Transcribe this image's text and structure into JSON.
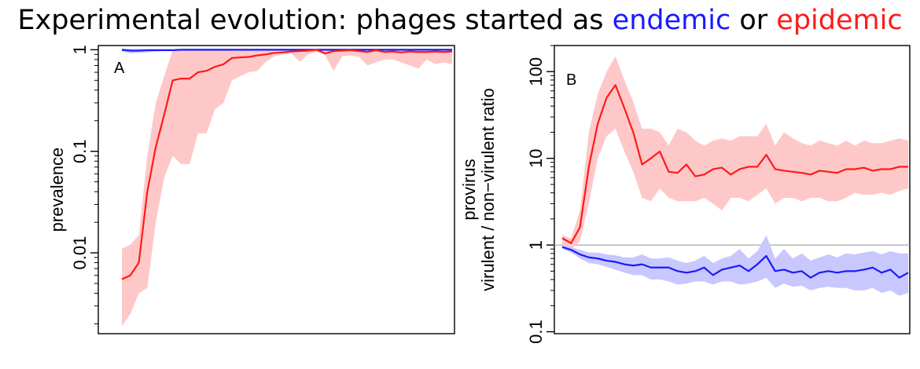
{
  "title": {
    "prefix": "Experimental evolution: phages started as",
    "endemic": "endemic",
    "middle": "or",
    "epidemic": "epidemic"
  },
  "colors": {
    "endemic": "#1a1aff",
    "epidemic": "#ff1a1a",
    "endemic_band": "#c8c8ff",
    "epidemic_band": "#ffc8c8"
  },
  "chart_data": [
    {
      "type": "line",
      "panel_label": "A",
      "title": "",
      "xlabel": "",
      "ylabel": "prevalence",
      "yscale": "log",
      "ylim": [
        0.0016,
        1.1
      ],
      "xlim": [
        1,
        40
      ],
      "yticks": [
        0.01,
        0.1,
        1
      ],
      "ytick_labels": [
        "0.01",
        "0.1",
        "1"
      ],
      "x": [
        1,
        2,
        3,
        4,
        5,
        6,
        7,
        8,
        9,
        10,
        11,
        12,
        13,
        14,
        15,
        16,
        17,
        18,
        19,
        20,
        21,
        22,
        23,
        24,
        25,
        26,
        27,
        28,
        29,
        30,
        31,
        32,
        33,
        34,
        35,
        36,
        37,
        38,
        39,
        40
      ],
      "series": [
        {
          "key": "endemic",
          "values": [
            1,
            0.98,
            0.98,
            0.99,
            0.99,
            0.99,
            0.99,
            1,
            1,
            1,
            1,
            1,
            1,
            1,
            1,
            1,
            1,
            1,
            1,
            1,
            1,
            1,
            1,
            1,
            1,
            1,
            1,
            1,
            1,
            1,
            1,
            1,
            1,
            1,
            1,
            1,
            1,
            1,
            1,
            1
          ],
          "lower": [
            0.96,
            0.92,
            0.93,
            0.94,
            0.96,
            0.97,
            0.97,
            0.98,
            0.98,
            0.98,
            0.98,
            0.98,
            0.98,
            0.98,
            0.98,
            0.98,
            0.98,
            0.98,
            0.98,
            0.98,
            0.98,
            0.98,
            0.98,
            0.98,
            0.98,
            0.98,
            0.98,
            0.98,
            0.98,
            0.98,
            0.98,
            0.98,
            0.98,
            0.98,
            0.98,
            0.98,
            0.98,
            0.98,
            0.98,
            0.98
          ],
          "upper": [
            1.02,
            1.02,
            1.02,
            1.02,
            1.02,
            1.02,
            1.02,
            1.02,
            1.02,
            1.02,
            1.02,
            1.02,
            1.02,
            1.02,
            1.02,
            1.02,
            1.02,
            1.02,
            1.02,
            1.02,
            1.02,
            1.02,
            1.02,
            1.02,
            1.02,
            1.02,
            1.02,
            1.02,
            1.02,
            1.02,
            1.02,
            1.02,
            1.02,
            1.02,
            1.02,
            1.02,
            1.02,
            1.02,
            1.02,
            1.02
          ]
        },
        {
          "key": "epidemic",
          "values": [
            0.0055,
            0.006,
            0.008,
            0.04,
            0.11,
            0.23,
            0.5,
            0.52,
            0.52,
            0.6,
            0.62,
            0.68,
            0.72,
            0.83,
            0.84,
            0.85,
            0.88,
            0.9,
            0.93,
            0.94,
            0.96,
            0.97,
            0.98,
            1,
            0.92,
            0.97,
            0.98,
            0.99,
            0.97,
            0.95,
            0.99,
            0.95,
            0.96,
            0.94,
            0.96,
            0.95,
            0.95,
            0.96,
            0.95,
            0.96
          ],
          "lower": [
            0.0019,
            0.0025,
            0.004,
            0.0045,
            0.02,
            0.055,
            0.09,
            0.075,
            0.075,
            0.15,
            0.15,
            0.26,
            0.3,
            0.5,
            0.55,
            0.6,
            0.62,
            0.76,
            0.86,
            0.9,
            0.92,
            0.76,
            0.9,
            0.96,
            0.88,
            0.62,
            0.86,
            0.88,
            0.85,
            0.7,
            0.75,
            0.8,
            0.8,
            0.75,
            0.7,
            0.65,
            0.8,
            0.72,
            0.75,
            0.72
          ],
          "upper": [
            0.011,
            0.012,
            0.015,
            0.09,
            0.3,
            0.55,
            0.99,
            0.99,
            0.99,
            0.99,
            0.99,
            0.99,
            0.99,
            0.99,
            0.99,
            0.99,
            0.99,
            0.99,
            0.99,
            0.99,
            0.99,
            0.99,
            0.99,
            0.99,
            0.99,
            0.99,
            0.99,
            0.99,
            0.99,
            0.99,
            0.99,
            0.99,
            0.99,
            0.99,
            0.99,
            0.99,
            0.99,
            0.99,
            0.99,
            0.99
          ]
        }
      ]
    },
    {
      "type": "line",
      "panel_label": "B",
      "title": "",
      "xlabel": "",
      "ylabel": "provirus",
      "ylabel_line2": "virulent / non−virulent ratio",
      "yscale": "log",
      "ylim": [
        0.095,
        200
      ],
      "xlim": [
        1,
        40
      ],
      "yticks": [
        0.1,
        1,
        10,
        100
      ],
      "ytick_labels": [
        "0.1",
        "1",
        "10",
        "100"
      ],
      "reference_line": 1,
      "x": [
        1,
        2,
        3,
        4,
        5,
        6,
        7,
        8,
        9,
        10,
        11,
        12,
        13,
        14,
        15,
        16,
        17,
        18,
        19,
        20,
        21,
        22,
        23,
        24,
        25,
        26,
        27,
        28,
        29,
        30,
        31,
        32,
        33,
        34,
        35,
        36,
        37,
        38,
        39,
        40
      ],
      "series": [
        {
          "key": "epidemic",
          "values": [
            1.2,
            1.05,
            1.6,
            8,
            25,
            50,
            70,
            38,
            20,
            8.5,
            10,
            12,
            7,
            6.8,
            8.5,
            6.2,
            6.5,
            7.5,
            7.8,
            6.5,
            7.5,
            8,
            8,
            11,
            7.5,
            7.2,
            7,
            6.8,
            6.5,
            7.2,
            7,
            6.8,
            7.5,
            7.5,
            7.8,
            7.2,
            7.5,
            7.5,
            8,
            8
          ],
          "lower": [
            1,
            0.9,
            1.1,
            3,
            10,
            18,
            22,
            12,
            7,
            3.5,
            3.2,
            4.5,
            3.5,
            3.2,
            3.2,
            3.2,
            3.5,
            3,
            2.5,
            3.5,
            3.5,
            3.2,
            3.8,
            4.5,
            3,
            3.5,
            3.5,
            3.2,
            3.5,
            3.5,
            3.2,
            3.2,
            3.5,
            4,
            3.8,
            3.8,
            4,
            3.8,
            4.2,
            4.5
          ],
          "upper": [
            1.3,
            1.2,
            2.5,
            20,
            55,
            100,
            150,
            80,
            45,
            22,
            22,
            20,
            14,
            22,
            20,
            16,
            14,
            16,
            17,
            16,
            18,
            18,
            18,
            25,
            14,
            20,
            17,
            15,
            14,
            16,
            15,
            14,
            16,
            14,
            16,
            15,
            15,
            16,
            17,
            16
          ]
        },
        {
          "key": "endemic",
          "values": [
            0.95,
            0.88,
            0.78,
            0.72,
            0.7,
            0.66,
            0.64,
            0.6,
            0.58,
            0.6,
            0.55,
            0.55,
            0.55,
            0.5,
            0.48,
            0.5,
            0.55,
            0.45,
            0.52,
            0.55,
            0.58,
            0.5,
            0.6,
            0.75,
            0.5,
            0.52,
            0.48,
            0.5,
            0.42,
            0.48,
            0.5,
            0.48,
            0.5,
            0.5,
            0.52,
            0.55,
            0.48,
            0.52,
            0.42,
            0.48
          ],
          "lower": [
            0.9,
            0.82,
            0.7,
            0.62,
            0.6,
            0.56,
            0.52,
            0.48,
            0.45,
            0.45,
            0.4,
            0.4,
            0.38,
            0.35,
            0.36,
            0.38,
            0.38,
            0.35,
            0.38,
            0.38,
            0.35,
            0.36,
            0.38,
            0.42,
            0.32,
            0.36,
            0.33,
            0.34,
            0.3,
            0.32,
            0.33,
            0.32,
            0.32,
            0.3,
            0.3,
            0.32,
            0.28,
            0.3,
            0.26,
            0.28
          ],
          "upper": [
            1,
            0.95,
            0.88,
            0.82,
            0.82,
            0.78,
            0.76,
            0.72,
            0.72,
            0.78,
            0.7,
            0.7,
            0.72,
            0.66,
            0.62,
            0.66,
            0.75,
            0.62,
            0.7,
            0.75,
            0.9,
            0.7,
            0.85,
            1.3,
            0.7,
            0.9,
            0.7,
            0.8,
            0.66,
            0.72,
            0.78,
            0.72,
            0.8,
            0.78,
            0.82,
            0.85,
            0.78,
            0.85,
            0.8,
            0.8
          ]
        }
      ]
    }
  ]
}
